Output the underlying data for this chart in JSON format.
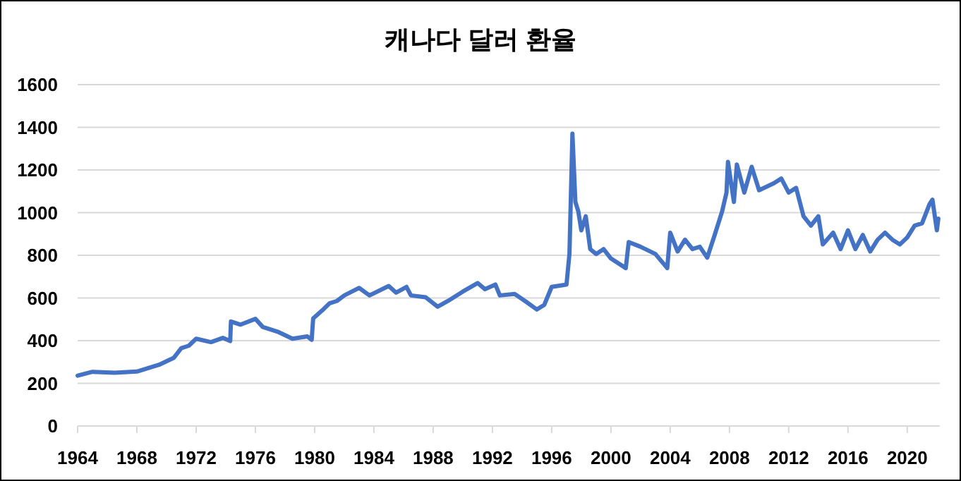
{
  "chart_data": {
    "type": "line",
    "title": "캐나다 달러 환율",
    "x": [
      1964,
      1965,
      1966.5,
      1968,
      1969.5,
      1970.5,
      1971,
      1971.5,
      1972,
      1973,
      1973.8,
      1974.3,
      1974.35,
      1975,
      1976,
      1976.5,
      1977.5,
      1978.5,
      1979.5,
      1979.8,
      1979.9,
      1980.5,
      1981,
      1981.5,
      1982,
      1983,
      1983.7,
      1985,
      1985.5,
      1986.2,
      1986.5,
      1987.5,
      1988.3,
      1989,
      1990,
      1991,
      1991.5,
      1992.2,
      1992.5,
      1993.5,
      1994.3,
      1995,
      1995.5,
      1996,
      1997,
      1997.2,
      1997.4,
      1997.6,
      1997.8,
      1998,
      1998.3,
      1998.6,
      1999,
      1999.5,
      2000,
      2001,
      2001.2,
      2002,
      2003,
      2003.8,
      2004,
      2004.5,
      2005,
      2005.5,
      2006,
      2006.5,
      2007,
      2007.5,
      2007.8,
      2007.9,
      2008.3,
      2008.5,
      2009,
      2009.5,
      2010,
      2011,
      2011.5,
      2012,
      2012.5,
      2013,
      2013.5,
      2014,
      2014.3,
      2015,
      2015.5,
      2016,
      2016.5,
      2017,
      2017.5,
      2018,
      2018.5,
      2019,
      2019.5,
      2020,
      2020.5,
      2021,
      2021.5,
      2021.7,
      2022,
      2022.1
    ],
    "series": [
      {
        "color": "#4472c4",
        "values": [
          236,
          254,
          250,
          255,
          287,
          320,
          365,
          376,
          409,
          393,
          413,
          398,
          490,
          475,
          502,
          464,
          442,
          409,
          420,
          404,
          504,
          541,
          575,
          586,
          612,
          647,
          612,
          656,
          625,
          652,
          612,
          603,
          559,
          586,
          630,
          670,
          641,
          663,
          612,
          619,
          581,
          546,
          568,
          652,
          663,
          807,
          1370,
          1050,
          1005,
          917,
          983,
          829,
          806,
          829,
          785,
          740,
          862,
          840,
          806,
          740,
          906,
          818,
          873,
          829,
          840,
          789,
          895,
          1005,
          1094,
          1238,
          1050,
          1226,
          1094,
          1215,
          1105,
          1138,
          1160,
          1094,
          1116,
          983,
          939,
          983,
          851,
          906,
          829,
          917,
          829,
          895,
          818,
          873,
          906,
          873,
          851,
          884,
          939,
          950,
          1039,
          1061,
          917,
          972
        ]
      }
    ],
    "xlim": [
      1964,
      2022.2
    ],
    "xticks": [
      1964,
      1968,
      1972,
      1976,
      1980,
      1984,
      1988,
      1992,
      1996,
      2000,
      2004,
      2008,
      2012,
      2016,
      2020
    ],
    "ylim": [
      0,
      1600
    ],
    "yticks": [
      0,
      200,
      400,
      600,
      800,
      1000,
      1200,
      1400,
      1600
    ],
    "grid": "y",
    "marker": "none",
    "line_style": "solid"
  }
}
